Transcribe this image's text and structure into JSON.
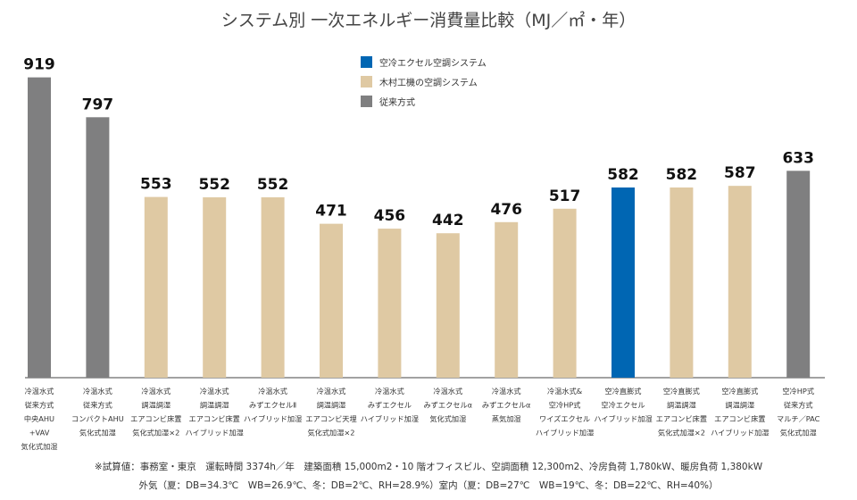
{
  "chart_data": {
    "type": "bar",
    "title": "システム別 一次エネルギー消費量比較（MJ／㎡・年）",
    "ylim": [
      0,
      1000
    ],
    "categories": [
      [
        "冷温水式",
        "従来方式",
        "中央AHU",
        "+VAV",
        "気化式加湿"
      ],
      [
        "冷温水式",
        "従来方式",
        "コンパクトAHU",
        "気化式加湿"
      ],
      [
        "冷温水式",
        "調温調湿",
        "エアコンビ床置",
        "気化式加湿×2"
      ],
      [
        "冷温水式",
        "調温調湿",
        "エアコンビ床置",
        "ハイブリッド加湿"
      ],
      [
        "冷温水式",
        "みずエクセルⅡ",
        "ハイブリッド加湿"
      ],
      [
        "冷温水式",
        "調温調湿",
        "エアコンビ天埋",
        "気化式加湿×2"
      ],
      [
        "冷温水式",
        "みずエクセル",
        "ハイブリッド加湿"
      ],
      [
        "冷温水式",
        "みずエクセルα",
        "気化式加湿"
      ],
      [
        "冷温水式",
        "みずエクセルα",
        "蒸気加湿"
      ],
      [
        "冷温水式&",
        "空冷HP式",
        "ワイズエクセル",
        "ハイブリッド加湿"
      ],
      [
        "空冷直膨式",
        "空冷エクセル",
        "ハイブリッド加湿"
      ],
      [
        "空冷直膨式",
        "調温調湿",
        "エアコンビ床置",
        "気化式加湿×2"
      ],
      [
        "空冷直膨式",
        "調温調湿",
        "エアコンビ床置",
        "ハイブリッド加湿"
      ],
      [
        "空冷HP式",
        "従来方式",
        "マルチ／PAC",
        "気化式加湿"
      ]
    ],
    "values": [
      919,
      797,
      553,
      552,
      552,
      471,
      456,
      442,
      476,
      517,
      582,
      582,
      587,
      633
    ],
    "series_index": [
      2,
      2,
      1,
      1,
      1,
      1,
      1,
      1,
      1,
      1,
      0,
      1,
      1,
      2
    ],
    "legend": [
      {
        "name": "空冷エクセル空調システム",
        "color": "#0066b3"
      },
      {
        "name": "木村工機の空調システム",
        "color": "#dfc9a3"
      },
      {
        "name": "従来方式",
        "color": "#7f7f80"
      }
    ],
    "legend_position": "top-center",
    "grid": false
  },
  "footnotes": {
    "line1": "※試算値：事務室・東京　運転時間 3374h／年　建築面積 15,000m2・10 階オフィスビル、空調面積 12,300m2、冷房負荷 1,780kW、暖房負荷 1,380kW",
    "line2": "外気（夏：DB=34.3℃　WB=26.9℃、冬：DB=2℃、RH=28.9%）室内（夏：DB=27℃　WB=19℃、冬：DB=22℃、RH=40%）"
  }
}
